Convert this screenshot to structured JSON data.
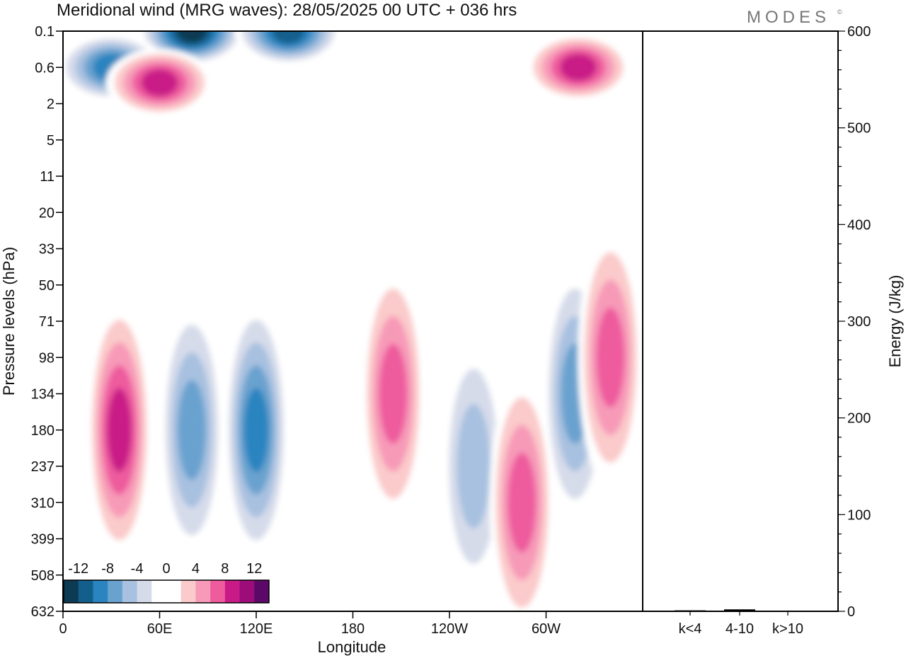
{
  "figure": {
    "title": "Meridional wind (MRG waves):  28/05/2025  00 UTC  + 036 hrs",
    "logo": "MODES",
    "logo_mark": "©"
  },
  "colors": {
    "scale": [
      "#0d3b53",
      "#125f8c",
      "#2a84c0",
      "#6aa2cf",
      "#a8c1e0",
      "#d6dbea",
      "#ffffff",
      "#ffffff",
      "#fbcaca",
      "#f79ab8",
      "#ee5c9e",
      "#c91b87",
      "#9c0d79",
      "#5c0868"
    ],
    "axes": "#000000"
  },
  "chart_data": [
    {
      "type": "heatmap",
      "title": "Meridional wind (MRG waves):  28/05/2025  00 UTC  + 036 hrs",
      "xlabel": "Longitude",
      "ylabel": "Pressure levels (hPa)",
      "xticks": [
        "0",
        "60E",
        "120E",
        "180",
        "120W",
        "60W"
      ],
      "xtick_values": [
        0,
        60,
        120,
        180,
        240,
        300
      ],
      "xlim": [
        0,
        360
      ],
      "yticks": [
        "0.1",
        "0.6",
        "2",
        "5",
        "11",
        "20",
        "33",
        "50",
        "71",
        "98",
        "134",
        "180",
        "237",
        "310",
        "399",
        "508",
        "632"
      ],
      "colorbar": {
        "labels": [
          "-12",
          "-8",
          "-4",
          "0",
          "4",
          "8",
          "12"
        ],
        "levels": [
          -14,
          -12,
          -10,
          -8,
          -6,
          -4,
          -2,
          0,
          2,
          4,
          6,
          8,
          10,
          12,
          14
        ],
        "units": ""
      },
      "features": [
        {
          "lon": 80,
          "level": "0.1",
          "value": -14
        },
        {
          "lon": 140,
          "level": "0.1",
          "value": -13
        },
        {
          "lon": 30,
          "level": "0.6",
          "value": -10
        },
        {
          "lon": 60,
          "level": "1",
          "value": 11
        },
        {
          "lon": 320,
          "level": "0.6",
          "value": 11
        },
        {
          "lon": 35,
          "level": "180",
          "value": 11
        },
        {
          "lon": 80,
          "level": "180",
          "value": -9
        },
        {
          "lon": 120,
          "level": "180",
          "value": -10
        },
        {
          "lon": 205,
          "level": "134",
          "value": 8
        },
        {
          "lon": 255,
          "level": "237",
          "value": -7
        },
        {
          "lon": 285,
          "level": "310",
          "value": 9
        },
        {
          "lon": 318,
          "level": "134",
          "value": -9
        },
        {
          "lon": 340,
          "level": "98",
          "value": 9
        }
      ]
    },
    {
      "type": "bar",
      "ylabel": "Energy (J/kg)",
      "categories": [
        "k<4",
        "4-10",
        "k>10"
      ],
      "values": [
        1,
        2,
        0
      ],
      "ylim": [
        0,
        600
      ],
      "yticks": [
        0,
        100,
        200,
        300,
        400,
        500,
        600
      ]
    }
  ]
}
